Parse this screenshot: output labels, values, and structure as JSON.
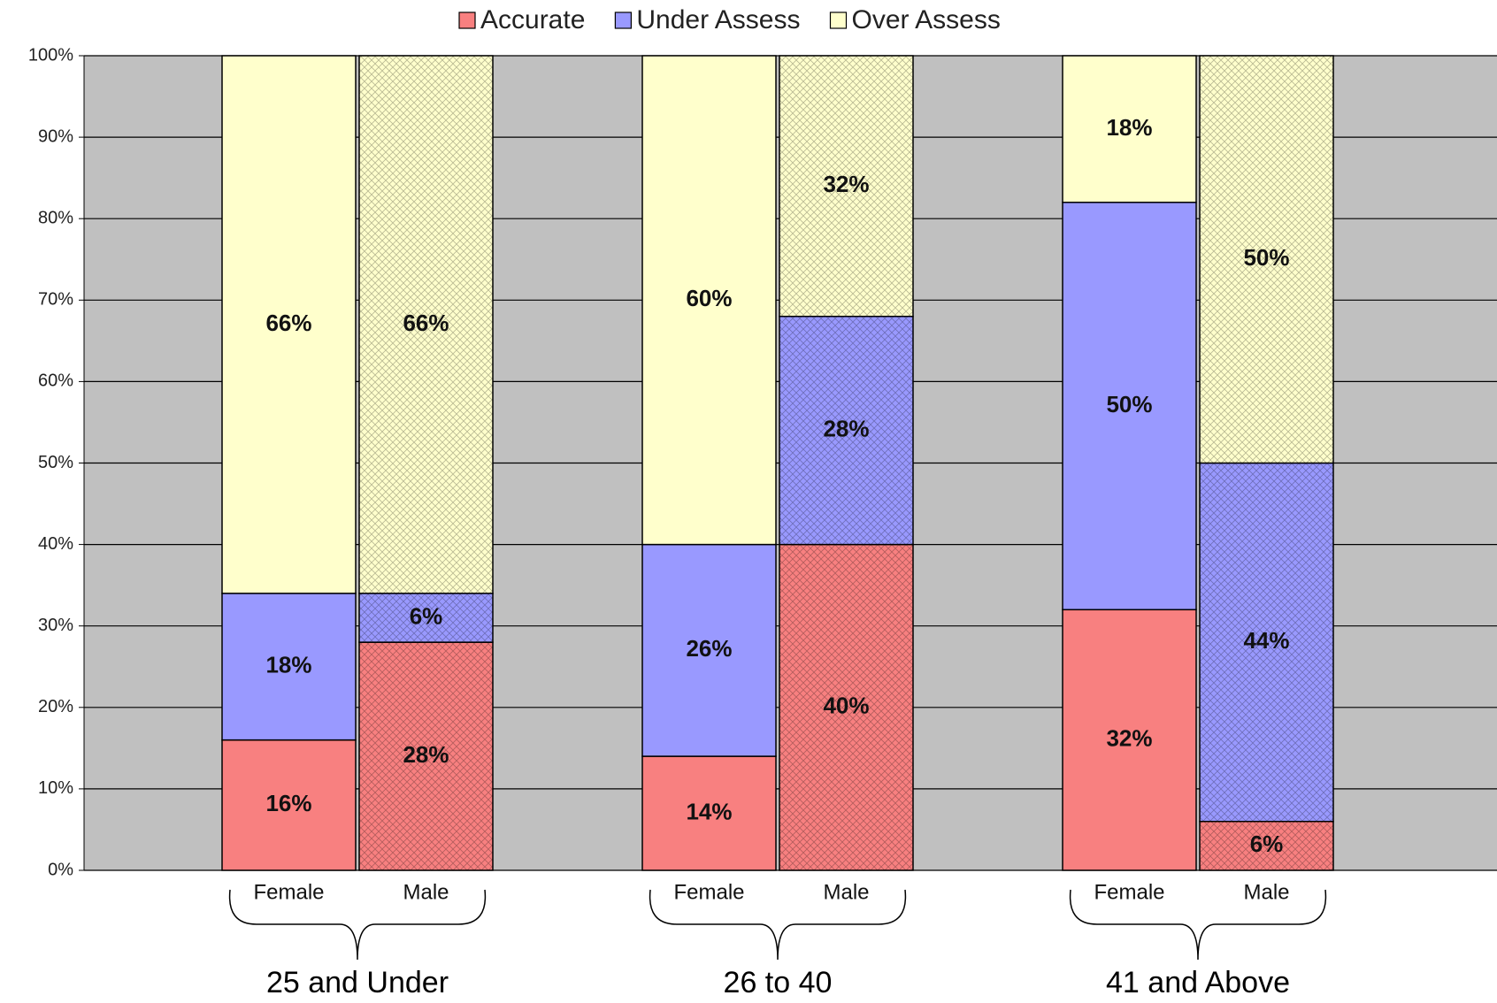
{
  "chart_data": {
    "type": "stacked_bar",
    "groups": [
      "25 and Under",
      "26 to 40",
      "41 and Above"
    ],
    "categories": [
      "Female",
      "Male",
      "Female",
      "Male",
      "Female",
      "Male"
    ],
    "series": [
      {
        "name": "Accurate",
        "color": "#f88080",
        "values": [
          16,
          28,
          14,
          40,
          32,
          6
        ],
        "value_labels": [
          "16%",
          "28%",
          "14%",
          "40%",
          "32%",
          "6%"
        ]
      },
      {
        "name": "Under Assess",
        "color": "#9999ff",
        "values": [
          18,
          6,
          26,
          28,
          50,
          44
        ],
        "value_labels": [
          "18%",
          "6%",
          "26%",
          "28%",
          "50%",
          "44%"
        ]
      },
      {
        "name": "Over Assess",
        "color": "#ffffcc",
        "values": [
          66,
          66,
          60,
          32,
          18,
          50
        ],
        "value_labels": [
          "66%",
          "66%",
          "60%",
          "32%",
          "18%",
          "50%"
        ]
      }
    ],
    "ylim": [
      0,
      100
    ],
    "yticks": [
      {
        "value": 0,
        "label": "0%"
      },
      {
        "value": 10,
        "label": "10%"
      },
      {
        "value": 20,
        "label": "20%"
      },
      {
        "value": 30,
        "label": "30%"
      },
      {
        "value": 40,
        "label": "40%"
      },
      {
        "value": 50,
        "label": "50%"
      },
      {
        "value": 60,
        "label": "60%"
      },
      {
        "value": 70,
        "label": "70%"
      },
      {
        "value": 80,
        "label": "80%"
      },
      {
        "value": 90,
        "label": "90%"
      },
      {
        "value": 100,
        "label": "100%"
      }
    ],
    "grid": true,
    "legend": "top"
  }
}
